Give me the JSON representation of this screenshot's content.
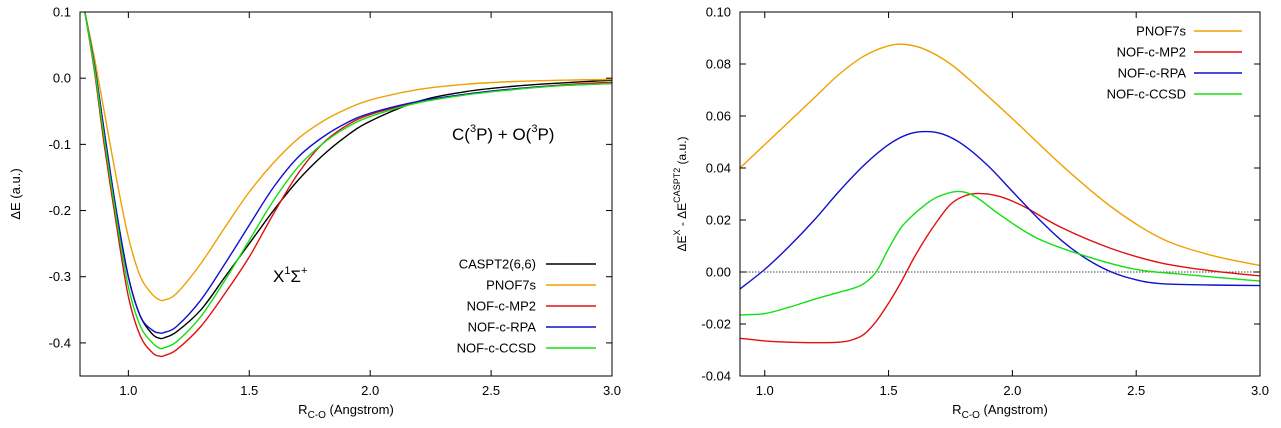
{
  "chart_data": [
    {
      "type": "line",
      "xlabel_main": "R",
      "xlabel_sub": "C-O",
      "xlabel_rest": " (Angstrom)",
      "ylabel": "ΔE (a.u.)",
      "xlim": [
        0.8,
        3.0
      ],
      "ylim": [
        -0.45,
        0.1
      ],
      "xticks": [
        1.0,
        1.5,
        2.0,
        2.5,
        3.0
      ],
      "xtick_labels": [
        "1.0",
        "1.5",
        "2.0",
        "2.5",
        "3.0"
      ],
      "yticks": [
        0.1,
        0.0,
        -0.1,
        -0.2,
        -0.3,
        -0.4
      ],
      "ytick_labels": [
        "0.1",
        "0.0",
        "-0.1",
        "-0.2",
        "-0.3",
        "-0.4"
      ],
      "grid": false,
      "legend_position": "bottom-right",
      "annotations": {
        "dissociation": {
          "p1": "C(",
          "sup1": "3",
          "p2": "P) + O(",
          "sup2": "3",
          "p3": "P)"
        },
        "state": {
          "p1": "X",
          "sup1": "1",
          "p2": "Σ",
          "sup2": "+"
        }
      },
      "series": [
        {
          "name": "CASPT2(6,6)",
          "color": "#000000",
          "x": [
            0.82,
            0.86,
            0.9,
            0.95,
            1.0,
            1.05,
            1.1,
            1.13,
            1.15,
            1.2,
            1.3,
            1.4,
            1.5,
            1.6,
            1.7,
            1.8,
            1.9,
            2.0,
            2.2,
            2.4,
            2.6,
            2.8,
            3.0
          ],
          "y": [
            0.1,
            0.02,
            -0.08,
            -0.2,
            -0.3,
            -0.36,
            -0.387,
            -0.393,
            -0.392,
            -0.383,
            -0.35,
            -0.3,
            -0.25,
            -0.2,
            -0.155,
            -0.118,
            -0.088,
            -0.065,
            -0.035,
            -0.02,
            -0.012,
            -0.007,
            -0.003
          ]
        },
        {
          "name": "PNOF7s",
          "color": "#f0a000",
          "x": [
            0.82,
            0.86,
            0.9,
            0.95,
            1.0,
            1.05,
            1.1,
            1.13,
            1.15,
            1.2,
            1.3,
            1.4,
            1.5,
            1.6,
            1.7,
            1.8,
            1.9,
            2.0,
            2.2,
            2.4,
            2.6,
            2.8,
            3.0
          ],
          "y": [
            0.1,
            0.03,
            -0.05,
            -0.15,
            -0.24,
            -0.3,
            -0.327,
            -0.335,
            -0.335,
            -0.325,
            -0.28,
            -0.225,
            -0.172,
            -0.128,
            -0.092,
            -0.066,
            -0.047,
            -0.033,
            -0.017,
            -0.009,
            -0.005,
            -0.003,
            -0.002
          ]
        },
        {
          "name": "NOF-c-MP2",
          "color": "#e01010",
          "x": [
            0.82,
            0.86,
            0.9,
            0.95,
            1.0,
            1.05,
            1.1,
            1.13,
            1.15,
            1.2,
            1.3,
            1.4,
            1.5,
            1.6,
            1.7,
            1.8,
            1.9,
            2.0,
            2.2,
            2.4,
            2.6,
            2.8,
            3.0
          ],
          "y": [
            0.1,
            0.01,
            -0.1,
            -0.22,
            -0.33,
            -0.39,
            -0.415,
            -0.42,
            -0.419,
            -0.41,
            -0.375,
            -0.325,
            -0.27,
            -0.205,
            -0.145,
            -0.1,
            -0.072,
            -0.055,
            -0.036,
            -0.024,
            -0.016,
            -0.01,
            -0.006
          ]
        },
        {
          "name": "NOF-c-RPA",
          "color": "#1010d0",
          "x": [
            0.82,
            0.86,
            0.9,
            0.95,
            1.0,
            1.05,
            1.1,
            1.13,
            1.15,
            1.2,
            1.3,
            1.4,
            1.5,
            1.6,
            1.7,
            1.8,
            1.9,
            2.0,
            2.2,
            2.4,
            2.6,
            2.8,
            3.0
          ],
          "y": [
            0.1,
            0.02,
            -0.08,
            -0.2,
            -0.3,
            -0.36,
            -0.381,
            -0.385,
            -0.384,
            -0.375,
            -0.335,
            -0.28,
            -0.222,
            -0.165,
            -0.12,
            -0.09,
            -0.068,
            -0.053,
            -0.035,
            -0.024,
            -0.016,
            -0.011,
            -0.008
          ]
        },
        {
          "name": "NOF-c-CCSD",
          "color": "#10e010",
          "x": [
            0.82,
            0.86,
            0.9,
            0.95,
            1.0,
            1.05,
            1.1,
            1.13,
            1.15,
            1.2,
            1.3,
            1.4,
            1.5,
            1.6,
            1.7,
            1.8,
            1.9,
            2.0,
            2.2,
            2.4,
            2.6,
            2.8,
            3.0
          ],
          "y": [
            0.1,
            0.015,
            -0.09,
            -0.21,
            -0.315,
            -0.375,
            -0.4,
            -0.408,
            -0.407,
            -0.398,
            -0.36,
            -0.305,
            -0.245,
            -0.185,
            -0.135,
            -0.1,
            -0.075,
            -0.058,
            -0.037,
            -0.025,
            -0.017,
            -0.011,
            -0.008
          ]
        }
      ]
    },
    {
      "type": "line",
      "xlabel_main": "R",
      "xlabel_sub": "C-O",
      "xlabel_rest": " (Angstrom)",
      "ylabel_p1": "ΔE",
      "ylabel_sup1": "X",
      "ylabel_p2": " - ΔE",
      "ylabel_sup2": "CASPT2",
      "ylabel_p3": " (a.u.)",
      "xlim": [
        0.9,
        3.0
      ],
      "ylim": [
        -0.04,
        0.1
      ],
      "xticks": [
        1.0,
        1.5,
        2.0,
        2.5,
        3.0
      ],
      "xtick_labels": [
        "1.0",
        "1.5",
        "2.0",
        "2.5",
        "3.0"
      ],
      "yticks": [
        0.1,
        0.08,
        0.06,
        0.04,
        0.02,
        0.0,
        -0.02,
        -0.04
      ],
      "ytick_labels": [
        "0.10",
        "0.08",
        "0.06",
        "0.04",
        "0.02",
        "0.00",
        "-0.02",
        "-0.04"
      ],
      "zero_line": true,
      "grid": false,
      "legend_position": "top-right",
      "series": [
        {
          "name": "PNOF7s",
          "color": "#f0a000",
          "x": [
            0.9,
            1.0,
            1.1,
            1.2,
            1.3,
            1.4,
            1.5,
            1.57,
            1.65,
            1.75,
            1.85,
            2.0,
            2.2,
            2.4,
            2.6,
            2.8,
            3.0
          ],
          "y": [
            0.04,
            0.049,
            0.058,
            0.067,
            0.076,
            0.083,
            0.087,
            0.0875,
            0.0855,
            0.08,
            0.072,
            0.059,
            0.041,
            0.025,
            0.013,
            0.0065,
            0.0025
          ]
        },
        {
          "name": "NOF-c-MP2",
          "color": "#e01010",
          "x": [
            0.9,
            1.0,
            1.1,
            1.2,
            1.3,
            1.35,
            1.4,
            1.45,
            1.5,
            1.55,
            1.6,
            1.65,
            1.7,
            1.75,
            1.8,
            1.86,
            1.95,
            2.05,
            2.2,
            2.4,
            2.6,
            2.8,
            3.0
          ],
          "y": [
            -0.0255,
            -0.0265,
            -0.027,
            -0.0272,
            -0.027,
            -0.0262,
            -0.024,
            -0.019,
            -0.012,
            -0.004,
            0.005,
            0.013,
            0.02,
            0.026,
            0.029,
            0.0302,
            0.029,
            0.025,
            0.017,
            0.009,
            0.0035,
            0.0005,
            -0.0015
          ]
        },
        {
          "name": "NOF-c-RPA",
          "color": "#1010d0",
          "x": [
            0.9,
            1.0,
            1.1,
            1.2,
            1.3,
            1.4,
            1.5,
            1.58,
            1.65,
            1.72,
            1.8,
            1.9,
            2.0,
            2.1,
            2.2,
            2.3,
            2.4,
            2.5,
            2.6,
            2.8,
            3.0
          ],
          "y": [
            -0.0065,
            0.001,
            0.01,
            0.02,
            0.031,
            0.041,
            0.049,
            0.053,
            0.054,
            0.053,
            0.049,
            0.041,
            0.031,
            0.021,
            0.012,
            0.005,
            0.0,
            -0.003,
            -0.0045,
            -0.005,
            -0.0052
          ]
        },
        {
          "name": "NOF-c-CCSD",
          "color": "#10e010",
          "x": [
            0.9,
            1.0,
            1.1,
            1.2,
            1.3,
            1.35,
            1.4,
            1.45,
            1.5,
            1.55,
            1.6,
            1.65,
            1.7,
            1.78,
            1.85,
            1.95,
            2.1,
            2.3,
            2.5,
            2.7,
            3.0
          ],
          "y": [
            -0.0165,
            -0.016,
            -0.0135,
            -0.0105,
            -0.0078,
            -0.0065,
            -0.0045,
            0.0,
            0.009,
            0.017,
            0.022,
            0.026,
            0.029,
            0.031,
            0.029,
            0.022,
            0.013,
            0.006,
            0.001,
            -0.001,
            -0.0035
          ]
        }
      ]
    }
  ]
}
